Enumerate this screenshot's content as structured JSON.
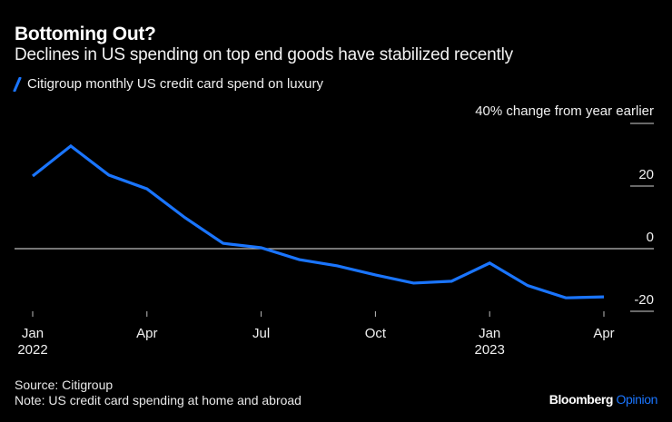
{
  "chart_data": {
    "type": "line",
    "title": "Bottoming Out?",
    "subtitle": "Declines in US spending on top end goods have stabilized recently",
    "ylabel": "% change from year earlier",
    "xlabel": "",
    "ylim": [
      -20,
      40
    ],
    "yticks": [
      40,
      20,
      0,
      -20
    ],
    "ytick_labels": [
      "40",
      "20",
      "0",
      "-20"
    ],
    "x": [
      "2022-01",
      "2022-02",
      "2022-03",
      "2022-04",
      "2022-05",
      "2022-06",
      "2022-07",
      "2022-08",
      "2022-09",
      "2022-10",
      "2022-11",
      "2022-12",
      "2023-01",
      "2023-02",
      "2023-03",
      "2023-04"
    ],
    "xticks": [
      {
        "index": 0,
        "label": "Jan",
        "sublabel": "2022"
      },
      {
        "index": 3,
        "label": "Apr",
        "sublabel": ""
      },
      {
        "index": 6,
        "label": "Jul",
        "sublabel": ""
      },
      {
        "index": 9,
        "label": "Oct",
        "sublabel": ""
      },
      {
        "index": 12,
        "label": "Jan",
        "sublabel": "2023"
      },
      {
        "index": 15,
        "label": "Apr",
        "sublabel": ""
      }
    ],
    "series": [
      {
        "name": "Citigroup monthly US credit card spend on luxury",
        "color": "#1a75ff",
        "values": [
          23.2,
          32.8,
          23.5,
          19.1,
          9.9,
          1.7,
          0.3,
          -3.5,
          -5.5,
          -8.4,
          -11.0,
          -10.4,
          -4.6,
          -11.8,
          -15.7,
          -15.4
        ]
      }
    ],
    "legend": "top-left",
    "grid": false,
    "zero_line": true
  },
  "text": {
    "title": "Bottoming Out?",
    "subtitle": "Declines in US spending on top end goods have stabilized recently",
    "legend_label": "Citigroup monthly US credit card spend on luxury",
    "unit_label": "% change from year earlier",
    "source": "Source: Citigroup",
    "note": "Note: US credit card spending at home and abroad",
    "brand_main": "Bloomberg",
    "brand_accent": "Opinion"
  },
  "colors": {
    "background": "#000000",
    "line": "#1a75ff",
    "accent": "#1a75ff",
    "text": "#ffffff"
  }
}
